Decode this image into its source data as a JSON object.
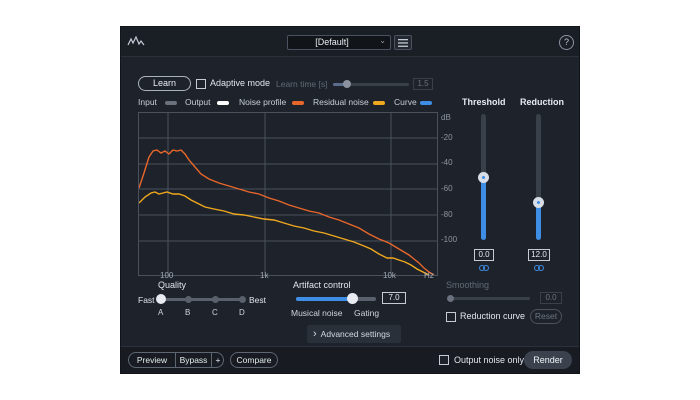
{
  "header": {
    "logo_icon": "waveform-logo-icon",
    "preset": "[Default]",
    "menu_icon": "hamburger-menu-icon",
    "help_icon": "?"
  },
  "learn": {
    "learn_label": "Learn",
    "adaptive_mode_label": "Adaptive mode",
    "adaptive_mode_checked": false,
    "learn_time_label": "Learn time [s]",
    "learn_time_value": "1.5",
    "learn_time_fraction": 0.18
  },
  "legend": {
    "items": [
      {
        "label": "Input",
        "color": "#6b727d"
      },
      {
        "label": "Output",
        "color": "#ffffff"
      },
      {
        "label": "Noise profile",
        "color": "#e8662a"
      },
      {
        "label": "Residual noise",
        "color": "#f0a81e"
      },
      {
        "label": "Curve",
        "color": "#3e8ee6"
      }
    ]
  },
  "graph": {
    "db_unit": "dB",
    "db_ticks": [
      "-20",
      "-40",
      "-60",
      "-80",
      "-100"
    ],
    "hz_ticks": [
      "100",
      "1k",
      "10k",
      "Hz"
    ]
  },
  "threshold": {
    "label": "Threshold",
    "value": "0.0",
    "level": 0.5
  },
  "reduction": {
    "label": "Reduction",
    "value": "12.0",
    "level": 0.3
  },
  "quality": {
    "label": "Quality",
    "fast_label": "Fast",
    "best_label": "Best",
    "positions": [
      "A",
      "B",
      "C",
      "D"
    ],
    "selected_index": 0
  },
  "artifact": {
    "label": "Artifact control",
    "value": "7.0",
    "fraction": 0.7,
    "left_label": "Musical noise",
    "right_label": "Gating"
  },
  "advanced": {
    "label": "Advanced settings",
    "chevron": "›"
  },
  "smoothing": {
    "label": "Smoothing",
    "value": "0.0",
    "fraction": 0.0
  },
  "reduction_curve": {
    "label": "Reduction curve",
    "checked": false,
    "reset_label": "Reset"
  },
  "footer": {
    "preview_label": "Preview",
    "bypass_label": "Bypass",
    "plus_label": "+",
    "compare_label": "Compare",
    "output_noise_label": "Output noise only",
    "output_noise_checked": false,
    "render_label": "Render"
  }
}
